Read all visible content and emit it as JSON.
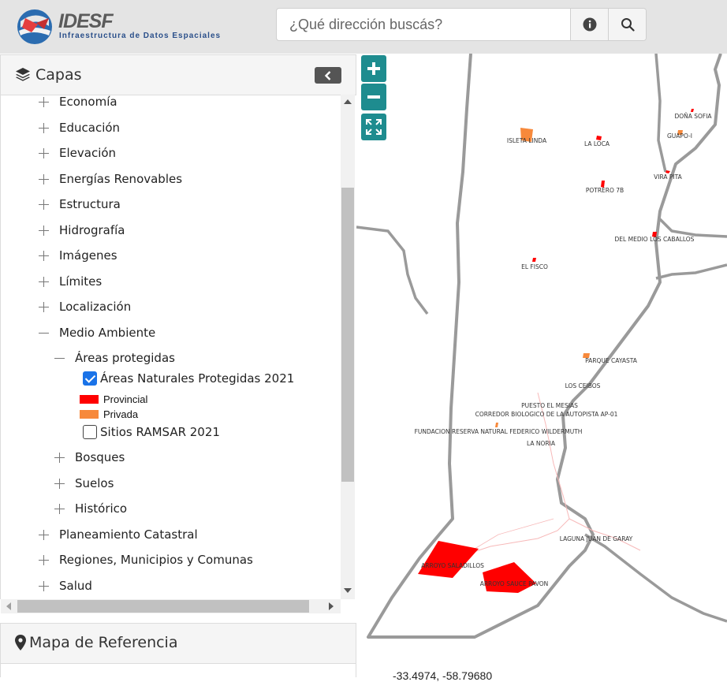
{
  "header": {
    "logo_title": "IDESF",
    "logo_subtitle": "Infraestructura de Datos Espaciales",
    "search_placeholder": "¿Qué dirección buscás?"
  },
  "layers_panel": {
    "title": "Capas",
    "items": [
      {
        "label": "Economía",
        "state": "collapsed"
      },
      {
        "label": "Educación",
        "state": "collapsed"
      },
      {
        "label": "Elevación",
        "state": "collapsed"
      },
      {
        "label": "Energías Renovables",
        "state": "collapsed"
      },
      {
        "label": "Estructura",
        "state": "collapsed"
      },
      {
        "label": "Hidrografía",
        "state": "collapsed"
      },
      {
        "label": "Imágenes",
        "state": "collapsed"
      },
      {
        "label": "Límites",
        "state": "collapsed"
      },
      {
        "label": "Localización",
        "state": "collapsed"
      },
      {
        "label": "Medio Ambiente",
        "state": "expanded"
      },
      {
        "label": "Planeamiento Catastral",
        "state": "collapsed"
      },
      {
        "label": "Regiones, Municipios y Comunas",
        "state": "collapsed"
      },
      {
        "label": "Salud",
        "state": "collapsed"
      }
    ],
    "medio_ambiente": {
      "areas_protegidas": "Áreas protegidas",
      "layer_anp": "Áreas Naturales Protegidas 2021",
      "layer_anp_checked": true,
      "legend": [
        {
          "label": "Provincial",
          "color": "#ff0000"
        },
        {
          "label": "Privada",
          "color": "#f7893b"
        }
      ],
      "layer_ramsar": "Sitios RAMSAR 2021",
      "layer_ramsar_checked": false,
      "bosques": "Bosques",
      "suelos": "Suelos",
      "historico": "Histórico"
    }
  },
  "reference_panel": {
    "title": "Mapa de Referencia"
  },
  "map": {
    "labels": {
      "dona_sofia": "DOÑA SOFIA",
      "guapoi": "GUAPO-I",
      "isleta_linda": "ISLETA LINDA",
      "la_loca": "LA LOCA",
      "vira_pita": "VIRA PITA",
      "potrero_7b": "POTRERO 7B",
      "del_medio": "DEL MEDIO LOS CABALLOS",
      "el_fisco": "EL FISCO",
      "parque_cayasta": "PARQUE CAYASTA",
      "los_ceibos": "LOS CEIBOS",
      "puesto_el_mesias": "PUESTO EL MESIAS",
      "corredor": "CORREDOR BIOLOGICO DE LA AUTOPISTA  AP-01",
      "fundacion": "FUNDACION RESERVA NATURAL FEDERICO WILDERMUTH",
      "la_noria": "LA NORIA",
      "laguna": "LAGUNA JUAN DE GARAY",
      "arroyo_saladillos": "ARROYO SALADILLOS",
      "arroyo_sauce": "ARROYO SAUCE PAVON"
    },
    "coords": "-33.4974, -58.79680"
  },
  "colors": {
    "accent": "#1e8c8f",
    "provincial": "#ff0000",
    "privada": "#f7893b",
    "boundary": "#9a9a9a"
  }
}
